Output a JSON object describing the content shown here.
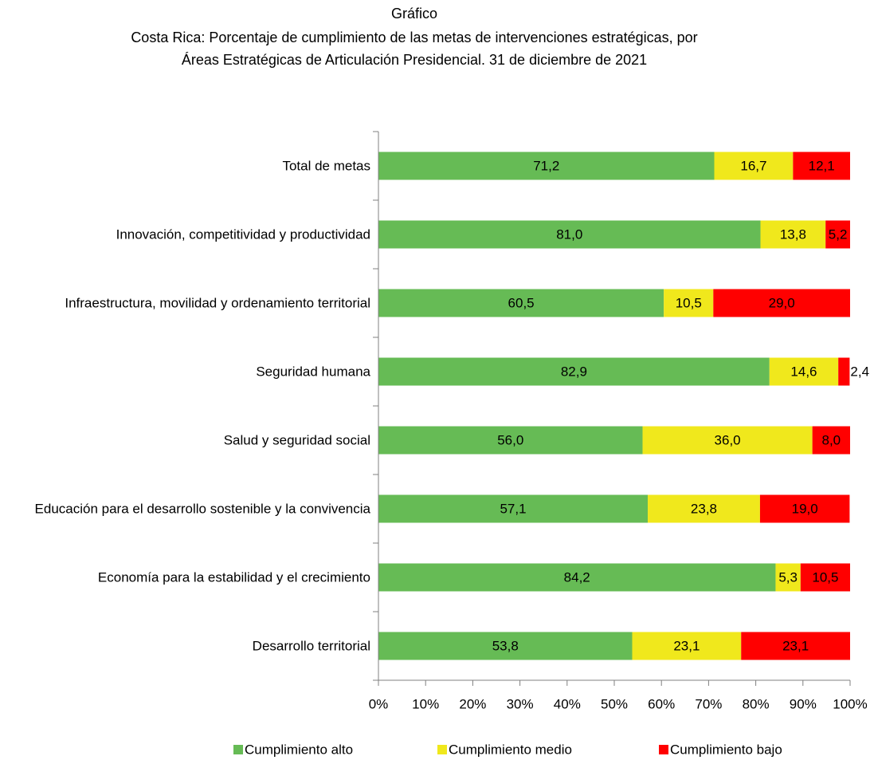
{
  "chart_data": {
    "type": "stacked_barh",
    "title": "Gráfico",
    "subtitle": [
      "Costa Rica: Porcentaje de cumplimiento de las metas de intervenciones estratégicas, por",
      "Áreas Estratégicas de Articulación Presidencial. 31 de diciembre de 2021"
    ],
    "categories": [
      "Total de metas",
      "Innovación, competitividad y productividad",
      "Infraestructura, movilidad y ordenamiento territorial",
      "Seguridad humana",
      "Salud y seguridad social",
      "Educación para el desarrollo sostenible y la convivencia",
      "Economía para la estabilidad y el crecimiento",
      "Desarrollo territorial"
    ],
    "series": [
      {
        "name": "Cumplimiento alto",
        "color": "#66bb55",
        "label_color": "#000000",
        "values": [
          71.2,
          81.0,
          60.5,
          82.9,
          56.0,
          57.1,
          84.2,
          53.8
        ],
        "value_labels": [
          "71,2",
          "81,0",
          "60,5",
          "82,9",
          "56,0",
          "57,1",
          "84,2",
          "53,8"
        ]
      },
      {
        "name": "Cumplimiento medio",
        "color": "#f0e81c",
        "label_color": "#000000",
        "values": [
          16.7,
          13.8,
          10.5,
          14.6,
          36.0,
          23.8,
          5.3,
          23.1
        ],
        "value_labels": [
          "16,7",
          "13,8",
          "10,5",
          "14,6",
          "36,0",
          "23,8",
          "5,3",
          "23,1"
        ]
      },
      {
        "name": "Cumplimiento bajo",
        "color": "#ff0000",
        "label_color": "#ffffff",
        "values": [
          12.1,
          5.2,
          29.0,
          2.4,
          8.0,
          19.0,
          10.5,
          23.1
        ],
        "value_labels": [
          "12,1",
          "5,2",
          "29,0",
          "2,4",
          "8,0",
          "19,0",
          "10,5",
          "23,1"
        ]
      }
    ],
    "xlim": [
      0,
      100
    ],
    "xticks": [
      {
        "value": 0,
        "label": "0%"
      },
      {
        "value": 10,
        "label": "10%"
      },
      {
        "value": 20,
        "label": "20%"
      },
      {
        "value": 30,
        "label": "30%"
      },
      {
        "value": 40,
        "label": "40%"
      },
      {
        "value": 50,
        "label": "50%"
      },
      {
        "value": 60,
        "label": "60%"
      },
      {
        "value": 70,
        "label": "70%"
      },
      {
        "value": 80,
        "label": "80%"
      },
      {
        "value": 90,
        "label": "90%"
      },
      {
        "value": 100,
        "label": "100%"
      }
    ],
    "legend": "bottom",
    "grid": false
  }
}
